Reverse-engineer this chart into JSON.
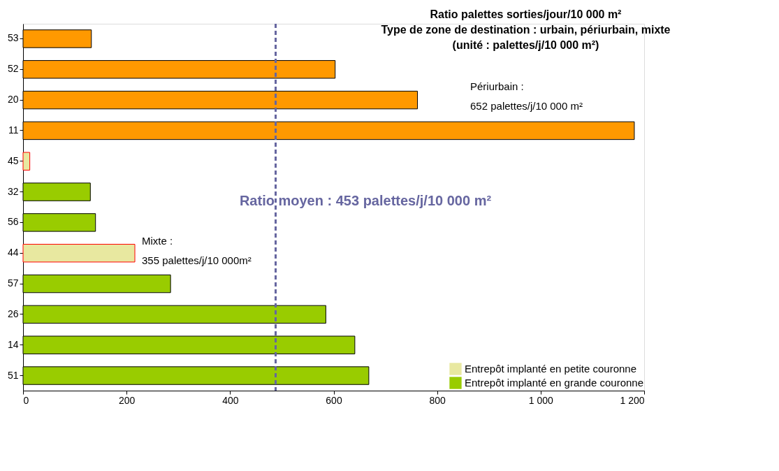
{
  "chart_data": {
    "type": "bar",
    "orientation": "horizontal",
    "title": [
      "Ratio palettes sorties/jour/10 000 m²",
      "Type de zone de destination : urbain, périurbain, mixte",
      "(unité : palettes/j/10 000 m²)"
    ],
    "categories": [
      "53",
      "52",
      "20",
      "11",
      "45",
      "32",
      "56",
      "44",
      "57",
      "26",
      "14",
      "51"
    ],
    "series": [
      {
        "color": "#ff9900",
        "values": [
          132,
          603,
          762,
          1181,
          null,
          null,
          null,
          null,
          null,
          null,
          null,
          null
        ]
      },
      {
        "name": "Entrepôt implanté en petite couronne",
        "color": "#e8e8a0",
        "values": [
          null,
          null,
          null,
          null,
          13,
          null,
          null,
          216,
          null,
          null,
          null,
          null
        ]
      },
      {
        "name": "Entrepôt implanté en grande couronne",
        "color": "#99cc00",
        "values": [
          null,
          null,
          null,
          null,
          null,
          130,
          140,
          null,
          285,
          585,
          641,
          668
        ]
      }
    ],
    "xlim": [
      0,
      1200
    ],
    "xticks": [
      0,
      200,
      400,
      600,
      800,
      {
        "value": 1000,
        "label": "1 000"
      },
      {
        "value": 1200,
        "label": "1 200"
      }
    ],
    "ref_lines": [
      {
        "axis": "x",
        "value": 488,
        "color": "#6666a0",
        "line_style": "dashed"
      }
    ],
    "annotations": [
      "Périurbain :\n652 palettes/j/10 000 m²",
      "Mixte :\n355 palettes/j/10 000m²",
      "Ratio moyen : 453 palettes/j/10 000 m²"
    ],
    "legend": "bottom right",
    "grid": false
  }
}
